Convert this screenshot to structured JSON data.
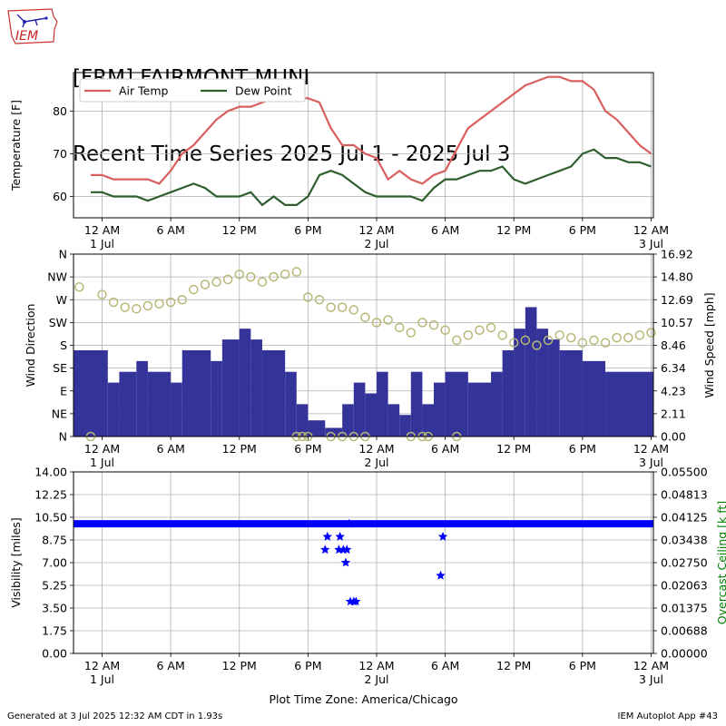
{
  "header": {
    "title_line1": "[FRM] FAIRMONT MUNI",
    "title_line2": "Recent Time Series 2025 Jul 1 - 2025 Jul 3",
    "logo_text": "IEM"
  },
  "footer": {
    "generated": "Generated at 3 Jul 2025 12:32 AM CDT in 1.93s",
    "app": "IEM Autoplot App #43"
  },
  "colors": {
    "air_temp": "#d95f5f",
    "dew_point": "#2e5e2e",
    "wind_speed": "#333399",
    "wind_direction": "#b7b777",
    "visibility": "#0000ff",
    "ceiling_label": "#008000",
    "grid": "#b0b0b0"
  },
  "chart_data": [
    {
      "type": "line",
      "ylabel": "Temperature [F]",
      "ylim": [
        55,
        89
      ],
      "yticks": [
        60,
        70,
        80
      ],
      "x_range_hours": [
        -2.5,
        48.2
      ],
      "xticks": [
        {
          "hour": 0,
          "label": "12 AM",
          "sub": "1 Jul"
        },
        {
          "hour": 6,
          "label": "6 AM",
          "sub": ""
        },
        {
          "hour": 12,
          "label": "12 PM",
          "sub": ""
        },
        {
          "hour": 18,
          "label": "6 PM",
          "sub": ""
        },
        {
          "hour": 24,
          "label": "12 AM",
          "sub": "2 Jul"
        },
        {
          "hour": 30,
          "label": "6 AM",
          "sub": ""
        },
        {
          "hour": 36,
          "label": "12 PM",
          "sub": ""
        },
        {
          "hour": 42,
          "label": "6 PM",
          "sub": ""
        },
        {
          "hour": 48,
          "label": "12 AM",
          "sub": "3 Jul"
        }
      ],
      "legend": {
        "position": "top-left",
        "entries": [
          "Air Temp",
          "Dew Point"
        ]
      },
      "grid": true,
      "series": [
        {
          "name": "Air Temp",
          "x": [
            -1,
            0,
            1,
            2,
            3,
            4,
            5,
            6,
            7,
            8,
            9,
            10,
            11,
            12,
            13,
            14,
            15,
            16,
            17,
            18,
            19,
            20,
            21,
            22,
            23,
            24,
            25,
            26,
            27,
            28,
            29,
            30,
            31,
            32,
            33,
            34,
            35,
            36,
            37,
            38,
            39,
            40,
            41,
            42,
            43,
            44,
            45,
            46,
            47,
            48
          ],
          "values": [
            65,
            65,
            64,
            64,
            64,
            64,
            63,
            66,
            70,
            72,
            75,
            78,
            80,
            81,
            81,
            82,
            83,
            83,
            83,
            83,
            82,
            76,
            72,
            72,
            70,
            69,
            64,
            66,
            64,
            63,
            65,
            66,
            71,
            76,
            78,
            80,
            82,
            84,
            86,
            87,
            88,
            88,
            87,
            87,
            85,
            80,
            78,
            75,
            72,
            70
          ]
        },
        {
          "name": "Dew Point",
          "x": [
            -1,
            0,
            1,
            2,
            3,
            4,
            5,
            6,
            7,
            8,
            9,
            10,
            11,
            12,
            13,
            14,
            15,
            16,
            17,
            18,
            19,
            20,
            21,
            22,
            23,
            24,
            25,
            26,
            27,
            28,
            29,
            30,
            31,
            32,
            33,
            34,
            35,
            36,
            37,
            38,
            39,
            40,
            41,
            42,
            43,
            44,
            45,
            46,
            47,
            48
          ],
          "values": [
            61,
            61,
            60,
            60,
            60,
            59,
            60,
            61,
            62,
            63,
            62,
            60,
            60,
            60,
            61,
            58,
            60,
            58,
            58,
            60,
            65,
            66,
            65,
            63,
            61,
            60,
            60,
            60,
            60,
            59,
            62,
            64,
            64,
            65,
            66,
            66,
            67,
            64,
            63,
            64,
            65,
            66,
            67,
            70,
            71,
            69,
            69,
            68,
            68,
            67
          ]
        }
      ]
    },
    {
      "type": "bar",
      "ylabel": "Wind Direction",
      "ylabel_right": "Wind Speed [mph]",
      "direction_ticks": [
        "N",
        "NE",
        "E",
        "SE",
        "S",
        "SW",
        "W",
        "NW",
        "N"
      ],
      "speed_ticks": [
        "0.00",
        "2.11",
        "4.23",
        "6.34",
        "8.46",
        "10.57",
        "12.69",
        "14.80",
        "16.92"
      ],
      "speed_ylim": [
        0,
        16.92
      ],
      "direction_ylim": [
        0,
        360
      ],
      "grid": true,
      "wind_speed_mph": [
        {
          "from": -2.5,
          "to": 0.5,
          "value": 8
        },
        {
          "from": 0.5,
          "to": 1.5,
          "value": 5
        },
        {
          "from": 1.5,
          "to": 3,
          "value": 6
        },
        {
          "from": 3,
          "to": 4,
          "value": 7
        },
        {
          "from": 4,
          "to": 6,
          "value": 6
        },
        {
          "from": 6,
          "to": 7,
          "value": 5
        },
        {
          "from": 7,
          "to": 9.5,
          "value": 8
        },
        {
          "from": 9.5,
          "to": 10.5,
          "value": 7
        },
        {
          "from": 10.5,
          "to": 12,
          "value": 9
        },
        {
          "from": 12,
          "to": 13,
          "value": 10
        },
        {
          "from": 13,
          "to": 14,
          "value": 9
        },
        {
          "from": 14,
          "to": 16,
          "value": 8
        },
        {
          "from": 16,
          "to": 17,
          "value": 6
        },
        {
          "from": 17,
          "to": 18,
          "value": 3
        },
        {
          "from": 18,
          "to": 19.5,
          "value": 1.5
        },
        {
          "from": 19.5,
          "to": 21,
          "value": 0.8
        },
        {
          "from": 21,
          "to": 22,
          "value": 3
        },
        {
          "from": 22,
          "to": 23,
          "value": 5
        },
        {
          "from": 23,
          "to": 24,
          "value": 4
        },
        {
          "from": 24,
          "to": 25,
          "value": 6
        },
        {
          "from": 25,
          "to": 26,
          "value": 3
        },
        {
          "from": 26,
          "to": 27,
          "value": 2
        },
        {
          "from": 27,
          "to": 28,
          "value": 6
        },
        {
          "from": 28,
          "to": 29,
          "value": 3
        },
        {
          "from": 29,
          "to": 30,
          "value": 5
        },
        {
          "from": 30,
          "to": 32,
          "value": 6
        },
        {
          "from": 32,
          "to": 34,
          "value": 5
        },
        {
          "from": 34,
          "to": 35,
          "value": 6
        },
        {
          "from": 35,
          "to": 36,
          "value": 8
        },
        {
          "from": 36,
          "to": 37,
          "value": 10
        },
        {
          "from": 37,
          "to": 38,
          "value": 12
        },
        {
          "from": 38,
          "to": 39,
          "value": 10
        },
        {
          "from": 39,
          "to": 40,
          "value": 9
        },
        {
          "from": 40,
          "to": 42,
          "value": 8
        },
        {
          "from": 42,
          "to": 44,
          "value": 7
        },
        {
          "from": 44,
          "to": 48.2,
          "value": 6
        }
      ],
      "wind_direction_deg": [
        {
          "hour": -2,
          "value": 295
        },
        {
          "hour": 0,
          "value": 280
        },
        {
          "hour": 1,
          "value": 265
        },
        {
          "hour": 2,
          "value": 255
        },
        {
          "hour": 3,
          "value": 252
        },
        {
          "hour": 4,
          "value": 258
        },
        {
          "hour": 5,
          "value": 262
        },
        {
          "hour": 6,
          "value": 265
        },
        {
          "hour": 7,
          "value": 270
        },
        {
          "hour": 8,
          "value": 290
        },
        {
          "hour": 9,
          "value": 300
        },
        {
          "hour": 10,
          "value": 305
        },
        {
          "hour": 11,
          "value": 310
        },
        {
          "hour": 12,
          "value": 320
        },
        {
          "hour": 13,
          "value": 315
        },
        {
          "hour": 14,
          "value": 305
        },
        {
          "hour": 15,
          "value": 315
        },
        {
          "hour": 16,
          "value": 320
        },
        {
          "hour": 17,
          "value": 325
        },
        {
          "hour": 18,
          "value": 275
        },
        {
          "hour": 19,
          "value": 270
        },
        {
          "hour": 20,
          "value": 255
        },
        {
          "hour": 21,
          "value": 255
        },
        {
          "hour": 22,
          "value": 250
        },
        {
          "hour": 23,
          "value": 235
        },
        {
          "hour": 24,
          "value": 225
        },
        {
          "hour": 25,
          "value": 230
        },
        {
          "hour": 26,
          "value": 215
        },
        {
          "hour": 27,
          "value": 205
        },
        {
          "hour": 28,
          "value": 225
        },
        {
          "hour": 29,
          "value": 220
        },
        {
          "hour": 30,
          "value": 210
        },
        {
          "hour": 31,
          "value": 190
        },
        {
          "hour": 32,
          "value": 200
        },
        {
          "hour": 33,
          "value": 210
        },
        {
          "hour": 34,
          "value": 215
        },
        {
          "hour": 35,
          "value": 200
        },
        {
          "hour": 36,
          "value": 185
        },
        {
          "hour": 37,
          "value": 190
        },
        {
          "hour": 38,
          "value": 180
        },
        {
          "hour": 39,
          "value": 190
        },
        {
          "hour": 40,
          "value": 200
        },
        {
          "hour": 41,
          "value": 195
        },
        {
          "hour": 42,
          "value": 185
        },
        {
          "hour": 43,
          "value": 190
        },
        {
          "hour": 44,
          "value": 185
        },
        {
          "hour": 45,
          "value": 195
        },
        {
          "hour": 46,
          "value": 195
        },
        {
          "hour": 47,
          "value": 200
        },
        {
          "hour": 48,
          "value": 205
        }
      ],
      "calm_hours": [
        -1,
        17,
        17.5,
        18,
        20,
        21,
        22,
        23,
        27,
        28,
        28.5,
        31
      ]
    },
    {
      "type": "scatter",
      "xlabel": "Plot Time Zone: America/Chicago",
      "ylabel": "Visibility [miles]",
      "ylabel_right": "Overcast Ceiling [k ft]",
      "ylim": [
        0,
        14
      ],
      "yticks": [
        "0.00",
        "1.75",
        "3.50",
        "5.25",
        "7.00",
        "8.75",
        "10.50",
        "12.25",
        "14.00"
      ],
      "right_yticks": [
        "0.00000",
        "0.00688",
        "0.01375",
        "0.02063",
        "0.02750",
        "0.03438",
        "0.04125",
        "0.04813",
        "0.05500"
      ],
      "right_ylim": [
        0,
        0.055
      ],
      "grid": true,
      "visibility_baseline": {
        "from": -2.5,
        "to": 48.2,
        "value": 10
      },
      "visibility_points": [
        {
          "hour": 19.5,
          "value": 8
        },
        {
          "hour": 19.7,
          "value": 9
        },
        {
          "hour": 20.7,
          "value": 8
        },
        {
          "hour": 20.8,
          "value": 9
        },
        {
          "hour": 21.1,
          "value": 8
        },
        {
          "hour": 21.3,
          "value": 7
        },
        {
          "hour": 21.4,
          "value": 8
        },
        {
          "hour": 21.6,
          "value": 10
        },
        {
          "hour": 21.7,
          "value": 4
        },
        {
          "hour": 22.0,
          "value": 4
        },
        {
          "hour": 22.2,
          "value": 4
        },
        {
          "hour": 29.6,
          "value": 6
        },
        {
          "hour": 29.8,
          "value": 9
        }
      ]
    }
  ]
}
